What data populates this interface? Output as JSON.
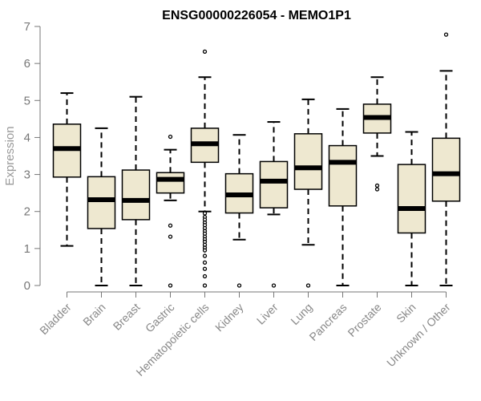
{
  "chart_data": {
    "type": "boxplot",
    "title": "ENSG00000226054 - MEMO1P1",
    "xlabel": "",
    "ylabel": "Expression",
    "ylim": [
      0,
      7
    ],
    "yticks": [
      0,
      1,
      2,
      3,
      4,
      5,
      6,
      7
    ],
    "grid": false,
    "legend": "none",
    "box_fill": "#EEE8D0",
    "line_color": "#000000",
    "categories": [
      "Bladder",
      "Brain",
      "Breast",
      "Gastric",
      "Hematopoietic cells",
      "Kidney",
      "Liver",
      "Lung",
      "Pancreas",
      "Prostate",
      "Skin",
      "Unknown / Other"
    ],
    "boxes": [
      {
        "q1": 2.93,
        "median": 3.7,
        "q3": 4.36,
        "whisker_low": 1.07,
        "whisker_high": 5.2,
        "outliers": []
      },
      {
        "q1": 1.54,
        "median": 2.32,
        "q3": 2.94,
        "whisker_low": 0.0,
        "whisker_high": 4.25,
        "outliers": []
      },
      {
        "q1": 1.78,
        "median": 2.3,
        "q3": 3.12,
        "whisker_low": 0.0,
        "whisker_high": 5.1,
        "outliers": []
      },
      {
        "q1": 2.5,
        "median": 2.87,
        "q3": 3.05,
        "whisker_low": 2.3,
        "whisker_high": 3.67,
        "outliers": [
          4.02,
          1.62,
          1.32,
          0.0
        ]
      },
      {
        "q1": 3.33,
        "median": 3.83,
        "q3": 4.25,
        "whisker_low": 2.0,
        "whisker_high": 5.63,
        "outliers": [
          6.32,
          1.95,
          1.85,
          1.78,
          1.7,
          1.63,
          1.55,
          1.47,
          1.4,
          1.32,
          1.25,
          1.18,
          1.1,
          1.02,
          0.95,
          0.8,
          0.62,
          0.45,
          0.25,
          0.0
        ]
      },
      {
        "q1": 1.96,
        "median": 2.45,
        "q3": 3.02,
        "whisker_low": 1.24,
        "whisker_high": 4.07,
        "outliers": [
          0.0
        ]
      },
      {
        "q1": 2.1,
        "median": 2.82,
        "q3": 3.35,
        "whisker_low": 1.92,
        "whisker_high": 4.42,
        "outliers": [
          0.0
        ]
      },
      {
        "q1": 2.6,
        "median": 3.18,
        "q3": 4.1,
        "whisker_low": 1.1,
        "whisker_high": 5.03,
        "outliers": [
          0.0
        ]
      },
      {
        "q1": 2.15,
        "median": 3.33,
        "q3": 3.78,
        "whisker_low": 0.0,
        "whisker_high": 4.77,
        "outliers": []
      },
      {
        "q1": 4.12,
        "median": 4.54,
        "q3": 4.9,
        "whisker_low": 3.5,
        "whisker_high": 5.63,
        "outliers": [
          2.7,
          2.6
        ]
      },
      {
        "q1": 1.42,
        "median": 2.08,
        "q3": 3.27,
        "whisker_low": 0.0,
        "whisker_high": 4.15,
        "outliers": []
      },
      {
        "q1": 2.28,
        "median": 3.02,
        "q3": 3.98,
        "whisker_low": 0.0,
        "whisker_high": 5.8,
        "outliers": [
          6.78
        ]
      }
    ]
  }
}
